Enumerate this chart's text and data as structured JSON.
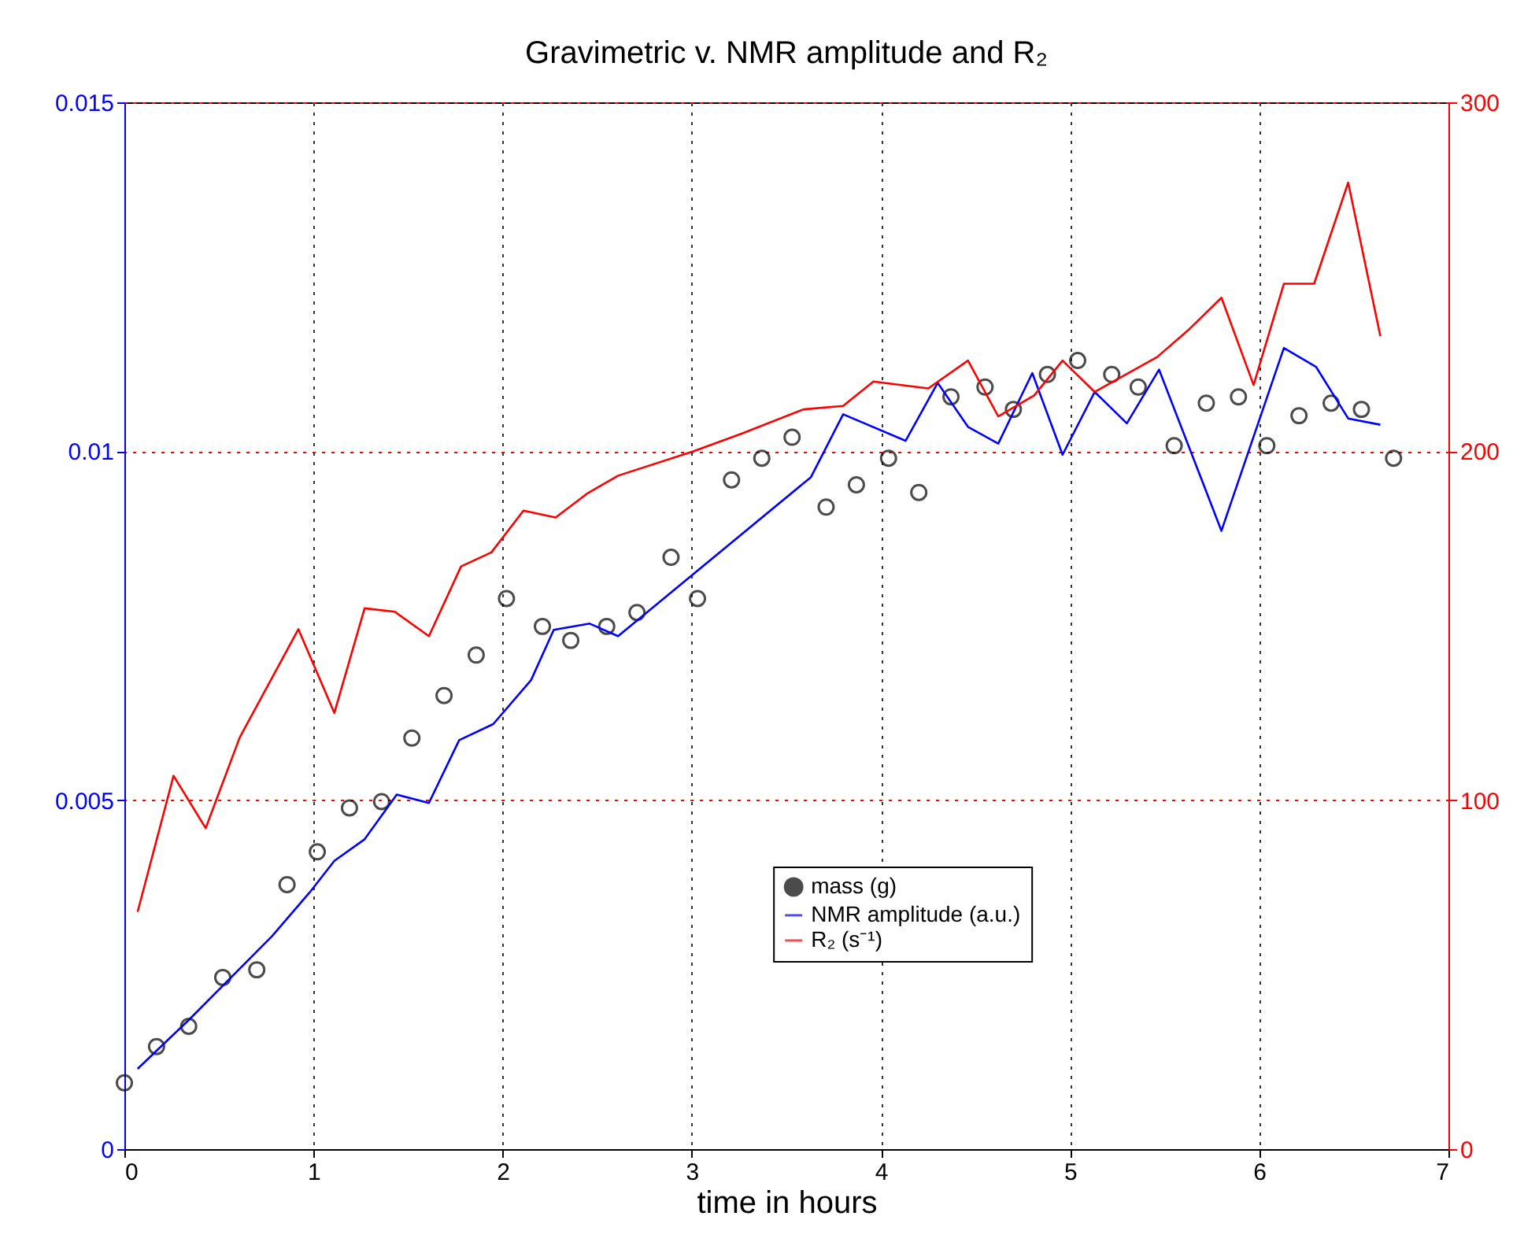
{
  "chart_data": {
    "type": "line",
    "title": "Gravimetric v. NMR amplitude and R₂",
    "xlabel": "time in hours",
    "xlim": [
      0,
      7
    ],
    "xticks": [
      0,
      1,
      2,
      3,
      4,
      5,
      6,
      7
    ],
    "ylim": [
      0,
      0.015
    ],
    "yticks": [
      0,
      0.005,
      0.01,
      0.015
    ],
    "y2lim": [
      0,
      300
    ],
    "y2ticks": [
      0,
      100,
      200,
      300
    ],
    "grid": true,
    "legend": "bottom",
    "series": [
      {
        "name": "mass (g)",
        "type": "scatter",
        "marker": "circle",
        "color": "#000000",
        "x": [
          0,
          0.17,
          0.34,
          0.52,
          0.7,
          0.86,
          1.02,
          1.19,
          1.36,
          1.52,
          1.69,
          1.86,
          2.02,
          2.21,
          2.36,
          2.55,
          2.71,
          2.89,
          3.03,
          3.21,
          3.37,
          3.53,
          3.71,
          3.87,
          4.04,
          4.2,
          4.37,
          4.55,
          4.7,
          4.88,
          5.04,
          5.22,
          5.36,
          5.55,
          5.72,
          5.89,
          6.04,
          6.21,
          6.38,
          6.54,
          6.71
        ],
        "values": [
          0.00095,
          0.00147,
          0.00176,
          0.00246,
          0.00257,
          0.00379,
          0.00426,
          0.00489,
          0.00498,
          0.00589,
          0.0065,
          0.00708,
          0.00789,
          0.00749,
          0.00729,
          0.00749,
          0.00769,
          0.00848,
          0.00789,
          0.00959,
          0.0099,
          0.0102,
          0.0092,
          0.00952,
          0.0099,
          0.00941,
          0.01078,
          0.01092,
          0.0106,
          0.0111,
          0.0113,
          0.0111,
          0.01092,
          0.01008,
          0.01069,
          0.01078,
          0.01008,
          0.01051,
          0.01069,
          0.0106,
          0.0099
        ]
      },
      {
        "name": "NMR amplitude (a.u.)",
        "color": "#0000ff",
        "x": [
          0.07,
          0.34,
          0.78,
          0.98,
          1.11,
          1.27,
          1.44,
          1.61,
          1.77,
          1.95,
          2.15,
          2.27,
          2.46,
          2.61,
          3.63,
          3.8,
          4.13,
          4.3,
          4.46,
          4.62,
          4.8,
          4.96,
          5.13,
          5.3,
          5.47,
          5.8,
          6.13,
          6.3,
          6.47,
          6.64
        ],
        "values": [
          0.00115,
          0.00185,
          0.00305,
          0.00368,
          0.00413,
          0.00444,
          0.00508,
          0.00496,
          0.00586,
          0.00609,
          0.00672,
          0.00744,
          0.00753,
          0.00735,
          0.00963,
          0.01053,
          0.01015,
          0.01098,
          0.01035,
          0.01011,
          0.01112,
          0.00995,
          0.01085,
          0.0104,
          0.01117,
          0.00886,
          0.01148,
          0.01121,
          0.01047,
          0.01038
        ]
      },
      {
        "name": "R₂ (s⁻¹)",
        "axis": "y2",
        "color": "#ff0000",
        "x": [
          0.07,
          0.26,
          0.43,
          0.61,
          0.92,
          1.11,
          1.27,
          1.43,
          1.61,
          1.78,
          1.94,
          2.11,
          2.28,
          2.45,
          2.61,
          3.01,
          3.26,
          3.59,
          3.8,
          3.96,
          4.25,
          4.46,
          4.62,
          4.81,
          4.96,
          5.13,
          5.46,
          5.63,
          5.8,
          5.97,
          6.13,
          6.29,
          6.47,
          6.64
        ],
        "values": [
          68,
          107,
          92,
          118,
          149,
          125,
          155,
          154,
          147,
          167,
          171,
          183,
          181,
          188,
          193,
          200,
          205,
          212,
          213,
          220,
          218,
          226,
          210,
          216,
          226,
          217,
          227,
          235,
          244,
          219,
          248,
          248,
          277,
          233
        ]
      }
    ]
  }
}
